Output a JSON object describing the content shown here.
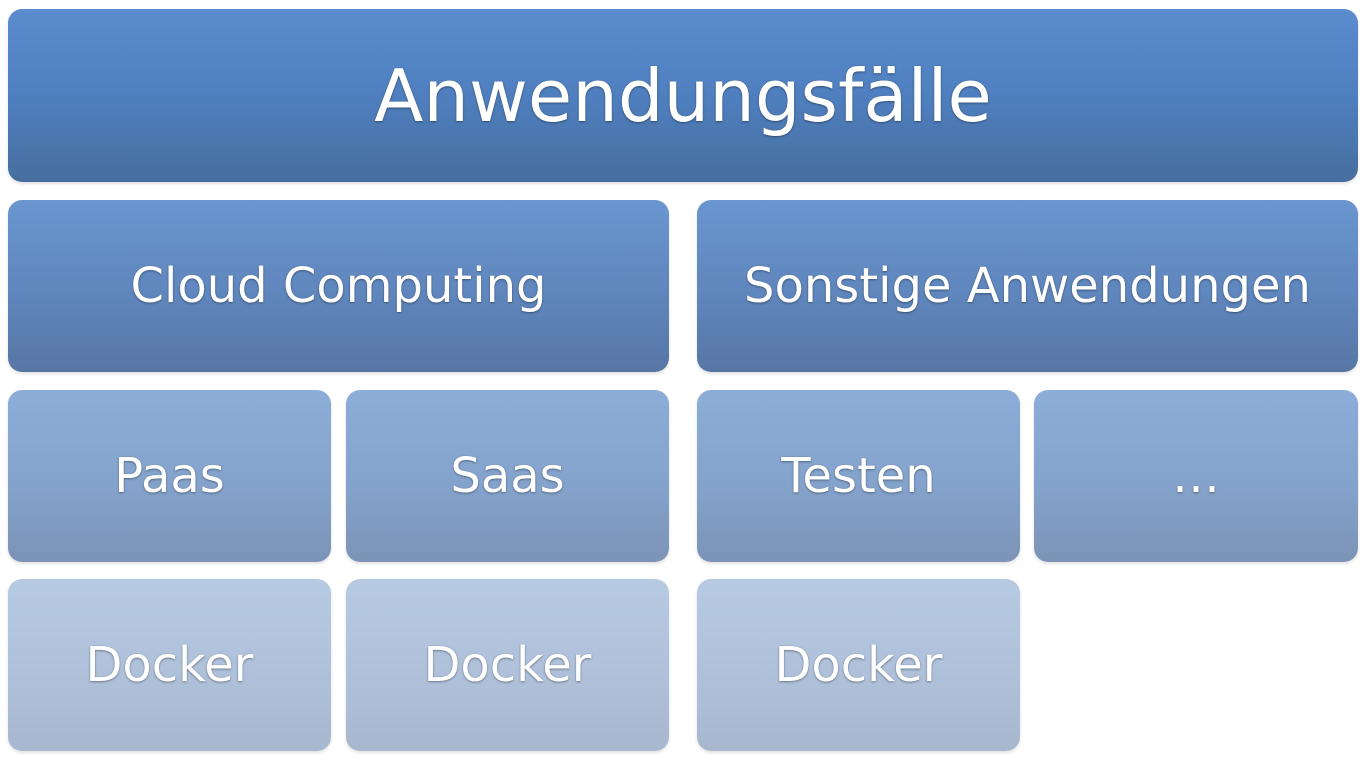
{
  "diagram": {
    "root": {
      "label": "Anwendungsfälle"
    },
    "categories": [
      {
        "label": "Cloud Computing",
        "children": [
          {
            "label": "Paas",
            "sub": {
              "label": "Docker"
            }
          },
          {
            "label": "Saas",
            "sub": {
              "label": "Docker"
            }
          }
        ]
      },
      {
        "label": "Sonstige Anwendungen",
        "children": [
          {
            "label": "Testen",
            "sub": {
              "label": "Docker"
            }
          },
          {
            "label": "…"
          }
        ]
      }
    ]
  }
}
